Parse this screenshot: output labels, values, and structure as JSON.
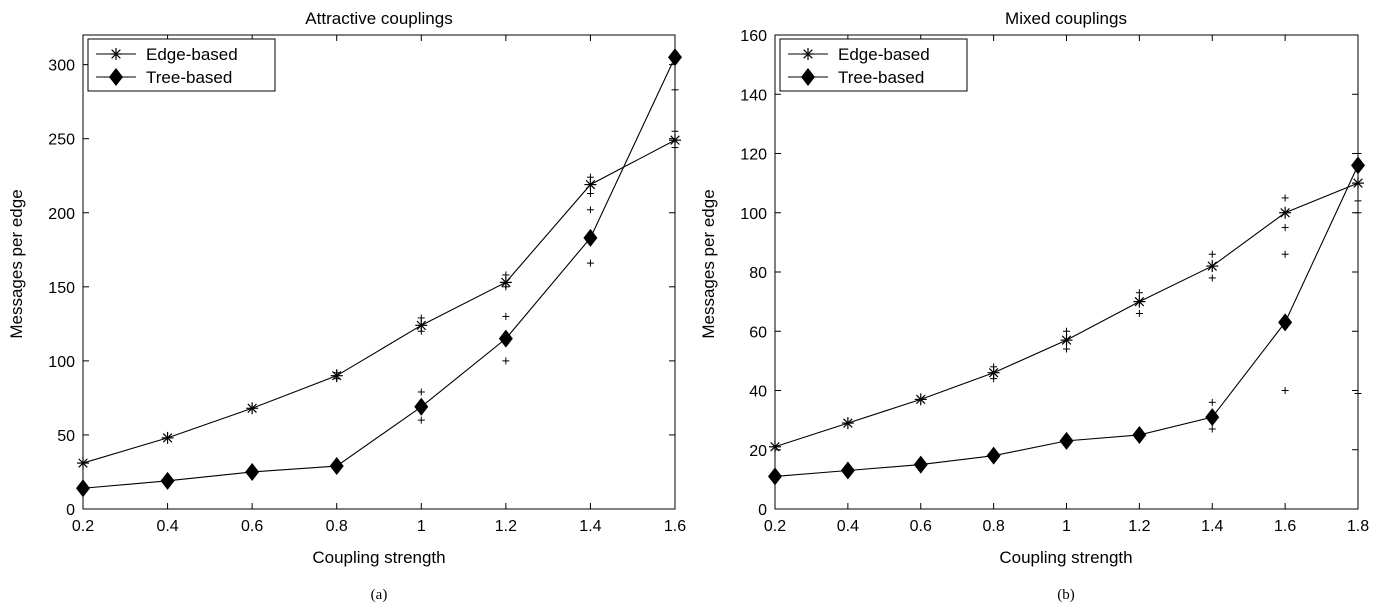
{
  "chart_data": [
    {
      "type": "line",
      "title": "Attractive couplings",
      "xlabel": "Coupling strength",
      "ylabel": "Messages per edge",
      "caption": "(a)",
      "xlim": [
        0.2,
        1.6
      ],
      "ylim": [
        0,
        320
      ],
      "xticks": [
        0.2,
        0.4,
        0.6,
        0.8,
        1,
        1.2,
        1.4,
        1.6
      ],
      "yticks": [
        0,
        50,
        100,
        150,
        200,
        250,
        300
      ],
      "grid": false,
      "legend": "top-left",
      "series": [
        {
          "name": "Edge-based",
          "marker": "asterisk",
          "x": [
            0.2,
            0.4,
            0.6,
            0.8,
            1.0,
            1.2,
            1.4,
            1.6
          ],
          "values": [
            31,
            48,
            68,
            90,
            124,
            153,
            219,
            249
          ],
          "spread_marks": [
            [
              0.8,
              88
            ],
            [
              0.8,
              92
            ],
            [
              1.0,
              120
            ],
            [
              1.0,
              129
            ],
            [
              1.2,
              150
            ],
            [
              1.2,
              158
            ],
            [
              1.4,
              213
            ],
            [
              1.4,
              224
            ],
            [
              1.6,
              244
            ],
            [
              1.6,
              255
            ]
          ]
        },
        {
          "name": "Tree-based",
          "marker": "diamond",
          "x": [
            0.2,
            0.4,
            0.6,
            0.8,
            1.0,
            1.2,
            1.4,
            1.6
          ],
          "values": [
            14,
            19,
            25,
            29,
            69,
            115,
            183,
            305
          ],
          "spread_marks": [
            [
              1.0,
              60
            ],
            [
              1.0,
              79
            ],
            [
              1.2,
              100
            ],
            [
              1.2,
              130
            ],
            [
              1.4,
              166
            ],
            [
              1.4,
              202
            ],
            [
              1.6,
              283
            ]
          ]
        }
      ]
    },
    {
      "type": "line",
      "title": "Mixed couplings",
      "xlabel": "Coupling strength",
      "ylabel": "Messages per edge",
      "caption": "(b)",
      "xlim": [
        0.2,
        1.8
      ],
      "ylim": [
        0,
        160
      ],
      "xticks": [
        0.2,
        0.4,
        0.6,
        0.8,
        1,
        1.2,
        1.4,
        1.6,
        1.8
      ],
      "yticks": [
        0,
        20,
        40,
        60,
        80,
        100,
        120,
        140,
        160
      ],
      "grid": false,
      "legend": "top-left",
      "series": [
        {
          "name": "Edge-based",
          "marker": "asterisk",
          "x": [
            0.2,
            0.4,
            0.6,
            0.8,
            1.0,
            1.2,
            1.4,
            1.6,
            1.8
          ],
          "values": [
            21,
            29,
            37,
            46,
            57,
            70,
            82,
            100,
            110
          ],
          "spread_marks": [
            [
              0.8,
              44
            ],
            [
              0.8,
              48
            ],
            [
              1.0,
              54
            ],
            [
              1.0,
              60
            ],
            [
              1.2,
              66
            ],
            [
              1.2,
              73
            ],
            [
              1.4,
              78
            ],
            [
              1.4,
              86
            ],
            [
              1.6,
              95
            ],
            [
              1.6,
              105
            ],
            [
              1.8,
              104
            ],
            [
              1.8,
              120
            ]
          ]
        },
        {
          "name": "Tree-based",
          "marker": "diamond",
          "x": [
            0.2,
            0.4,
            0.6,
            0.8,
            1.0,
            1.2,
            1.4,
            1.6,
            1.8
          ],
          "values": [
            11,
            13,
            15,
            18,
            23,
            25,
            31,
            63,
            116
          ],
          "spread_marks": [
            [
              1.4,
              27
            ],
            [
              1.4,
              36
            ],
            [
              1.6,
              40
            ],
            [
              1.6,
              86
            ],
            [
              1.8,
              39
            ],
            [
              1.8,
              100
            ]
          ]
        }
      ]
    }
  ]
}
